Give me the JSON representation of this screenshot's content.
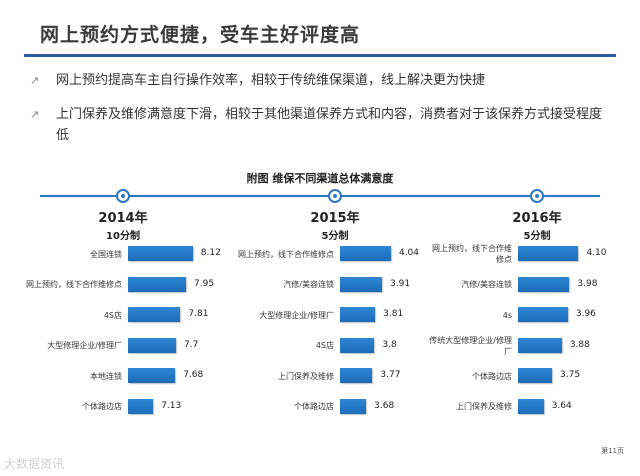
{
  "slide": {
    "title": "网上预约方式便捷，受车主好评度高",
    "bullets": [
      "网上预约提高车主自行操作效率，相较于传统维保渠道，线上解决更为快捷",
      "上门保养及维修满意度下滑，相较于其他渠道保养方式和内容，消费者对于该保养方式接受程度低"
    ],
    "page_number": "第11页",
    "watermark": "大数据资讯"
  },
  "colors": {
    "accent": "#2c5a9c",
    "bar": "#1f78c8",
    "timeline": "#2c78c2"
  },
  "chart_data": [
    {
      "type": "bar",
      "orientation": "horizontal",
      "title": "附图  维保不同渠道总体满意度",
      "year": "2014年",
      "scale": "10分制",
      "xlim": [
        6.5,
        8.5
      ],
      "categories": [
        "全国连锁",
        "网上预约，线下合作维修点",
        "4S店",
        "大型修理企业/修理厂",
        "本地连锁",
        "个体路边店"
      ],
      "values": [
        8.12,
        7.95,
        7.81,
        7.7,
        7.68,
        7.13
      ],
      "labels": [
        "8.12",
        "7.95",
        "7.81",
        "7.7",
        "7.68",
        "7.13"
      ]
    },
    {
      "type": "bar",
      "orientation": "horizontal",
      "year": "2015年",
      "scale": "5分制",
      "xlim": [
        3.3,
        4.2
      ],
      "categories": [
        "网上预约，线下合作维修点",
        "汽修/美容连锁",
        "大型修理企业/修理厂",
        "4S店",
        "上门保养及维修",
        "个体路边店"
      ],
      "values": [
        4.04,
        3.91,
        3.81,
        3.8,
        3.77,
        3.68
      ],
      "labels": [
        "4.04",
        "3.91",
        "3.81",
        "3.8",
        "3.77",
        "3.68"
      ]
    },
    {
      "type": "bar",
      "orientation": "horizontal",
      "year": "2016年",
      "scale": "5分制",
      "xlim": [
        3.3,
        4.2
      ],
      "categories": [
        "网上预约，线下合作维修点",
        "汽修/美容连锁",
        "4s",
        "传统大型修理企业/修理厂",
        "个体路边店",
        "上门保养及维修"
      ],
      "values": [
        4.1,
        3.98,
        3.96,
        3.88,
        3.75,
        3.64
      ],
      "labels": [
        "4.10",
        "3.98",
        "3.96",
        "3.88",
        "3.75",
        "3.64"
      ]
    }
  ]
}
